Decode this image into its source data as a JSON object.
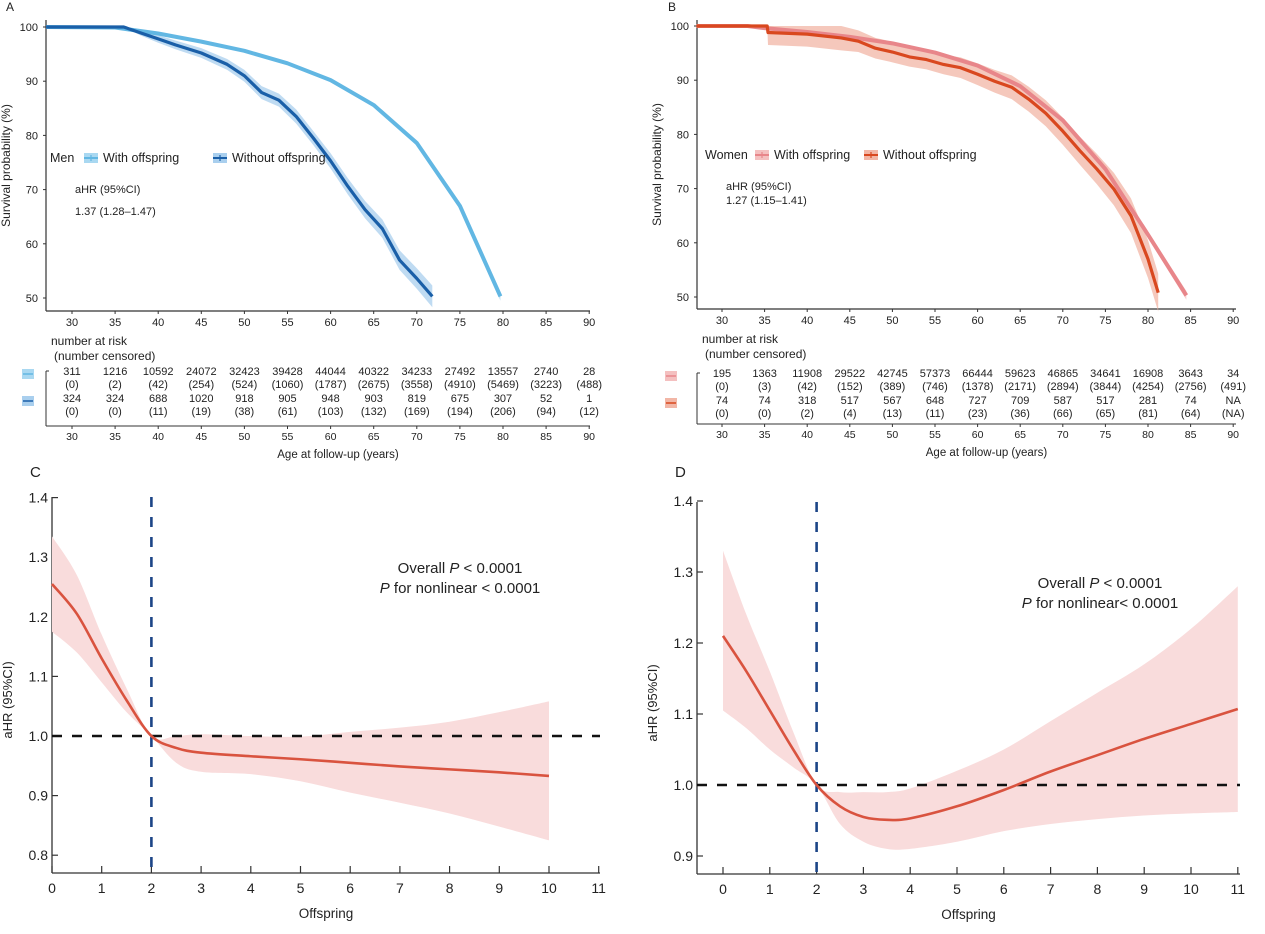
{
  "chart_data": [
    {
      "panel": "A",
      "type": "line",
      "subtype": "kaplan-meier",
      "ylabel": "Survival probability (%)",
      "xlabel": "Age at follow-up (years)",
      "xlim": [
        27,
        91
      ],
      "ylim": [
        48,
        100
      ],
      "xticks": [
        30,
        35,
        40,
        45,
        50,
        55,
        60,
        65,
        70,
        75,
        80,
        85,
        90
      ],
      "yticks": [
        50,
        60,
        70,
        80,
        90,
        100
      ],
      "legend": {
        "title": "Men",
        "placement": "center-left",
        "entries": [
          "With offspring",
          "Without offspring"
        ]
      },
      "annotation": {
        "line1": "aHR (95%CI)",
        "line2": "1.37 (1.28–1.47)"
      },
      "series": [
        {
          "name": "With offspring",
          "color": "#62b7e3",
          "band_color": "#a9d8f1",
          "x": [
            27,
            35,
            40,
            45,
            50,
            55,
            60,
            65,
            70,
            75,
            79.7
          ],
          "y": [
            100,
            99.9,
            98.8,
            97.3,
            95.6,
            93.3,
            90.2,
            85.6,
            78.6,
            67.0,
            50.3
          ],
          "ci_width": [
            0,
            0.1,
            0.2,
            0.2,
            0.3,
            0.3,
            0.35,
            0.4,
            0.5,
            0.6,
            0.8
          ]
        },
        {
          "name": "Without offspring",
          "color": "#1a5fa8",
          "band_color": "#a9cfee",
          "x": [
            27,
            36,
            38,
            40,
            42,
            45,
            48,
            50,
            52,
            54,
            56,
            58,
            60,
            62,
            64,
            66,
            68,
            70,
            71.8
          ],
          "y": [
            100,
            100,
            98.9,
            97.8,
            96.7,
            95.2,
            93.1,
            91.0,
            87.9,
            86.5,
            83.5,
            79.5,
            75.3,
            70.6,
            66.3,
            62.8,
            57.0,
            53.6,
            50.3
          ],
          "ci_width": [
            0,
            0,
            0.5,
            0.7,
            0.8,
            0.9,
            1.0,
            1.1,
            1.2,
            1.2,
            1.3,
            1.3,
            1.4,
            1.5,
            1.6,
            1.7,
            1.8,
            1.9,
            2.0
          ]
        }
      ],
      "risk_table": {
        "title_line1": "number at risk",
        "title_line2": "(number censored)",
        "rows": [
          {
            "name": "With offspring",
            "at_risk": [
              "311",
              "1216",
              "10592",
              "24072",
              "32423",
              "39428",
              "44044",
              "40322",
              "34233",
              "27492",
              "13557",
              "2740",
              "28"
            ],
            "censored": [
              "(0)",
              "(2)",
              "(42)",
              "(254)",
              "(524)",
              "(1060)",
              "(1787)",
              "(2675)",
              "(3558)",
              "(4910)",
              "(5469)",
              "(3223)",
              "(488)"
            ]
          },
          {
            "name": "Without offspring",
            "at_risk": [
              "324",
              "324",
              "688",
              "1020",
              "918",
              "905",
              "948",
              "903",
              "819",
              "675",
              "307",
              "52",
              "1"
            ],
            "censored": [
              "(0)",
              "(0)",
              "(11)",
              "(19)",
              "(38)",
              "(61)",
              "(103)",
              "(132)",
              "(169)",
              "(194)",
              "(206)",
              "(94)",
              "(12)"
            ]
          }
        ]
      }
    },
    {
      "panel": "B",
      "type": "line",
      "subtype": "kaplan-meier",
      "ylabel": "Survival probability (%)",
      "xlabel": "Age at follow-up (years)",
      "xlim": [
        27,
        91
      ],
      "ylim": [
        48,
        100
      ],
      "xticks": [
        30,
        35,
        40,
        45,
        50,
        55,
        60,
        65,
        70,
        75,
        80,
        85,
        90
      ],
      "yticks": [
        50,
        60,
        70,
        80,
        90,
        100
      ],
      "legend": {
        "title": "Women",
        "placement": "center-left",
        "entries": [
          "With offspring",
          "Without offspring"
        ]
      },
      "annotation": {
        "line1": "aHR (95%CI)",
        "line2": "1.27 (1.15–1.41)"
      },
      "series": [
        {
          "name": "With offspring",
          "color": "#e8868a",
          "band_color": "#f4c0c0",
          "x": [
            27,
            33,
            35,
            40,
            45,
            50,
            55,
            60,
            65,
            70,
            75,
            80,
            84.5
          ],
          "y": [
            100,
            100,
            99.6,
            98.9,
            98.0,
            96.8,
            95.1,
            92.7,
            88.9,
            82.6,
            73.6,
            61.5,
            50.3
          ],
          "ci_width": [
            0,
            0,
            0.2,
            0.2,
            0.2,
            0.25,
            0.3,
            0.3,
            0.35,
            0.4,
            0.5,
            0.6,
            0.8
          ]
        },
        {
          "name": "Without offspring",
          "color": "#d9481f",
          "band_color": "#f2b6a6",
          "x": [
            27,
            35.3,
            35.4,
            40,
            44,
            46,
            48,
            50,
            52,
            54,
            56,
            58,
            60,
            62,
            64,
            66,
            68,
            70,
            72,
            74,
            76,
            78,
            80,
            81.2
          ],
          "y": [
            100,
            100,
            98.8,
            98.5,
            97.8,
            97.2,
            95.9,
            95.2,
            94.3,
            93.8,
            92.9,
            92.3,
            91.1,
            89.8,
            88.7,
            86.5,
            83.9,
            80.6,
            77.0,
            73.6,
            69.9,
            65.0,
            57.0,
            50.8
          ],
          "ci_width": [
            0,
            0,
            2.3,
            2.3,
            2.3,
            2.0,
            1.9,
            1.9,
            1.8,
            1.8,
            1.8,
            1.9,
            2.0,
            2.1,
            2.2,
            2.3,
            2.4,
            2.5,
            2.6,
            2.8,
            3.0,
            3.2,
            3.5,
            3.5
          ]
        }
      ],
      "risk_table": {
        "title_line1": "number at risk",
        "title_line2": "(number censored)",
        "rows": [
          {
            "name": "With offspring",
            "at_risk": [
              "195",
              "1363",
              "11908",
              "29522",
              "42745",
              "57373",
              "66444",
              "59623",
              "46865",
              "34641",
              "16908",
              "3643",
              "34"
            ],
            "censored": [
              "(0)",
              "(3)",
              "(42)",
              "(152)",
              "(389)",
              "(746)",
              "(1378)",
              "(2171)",
              "(2894)",
              "(3844)",
              "(4254)",
              "(2756)",
              "(491)"
            ]
          },
          {
            "name": "Without offspring",
            "at_risk": [
              "74",
              "74",
              "318",
              "517",
              "567",
              "648",
              "727",
              "709",
              "587",
              "517",
              "281",
              "74",
              "NA"
            ],
            "censored": [
              "(0)",
              "(0)",
              "(2)",
              "(4)",
              "(13)",
              "(11)",
              "(23)",
              "(36)",
              "(66)",
              "(65)",
              "(81)",
              "(64)",
              "(NA)"
            ]
          }
        ]
      }
    },
    {
      "panel": "C",
      "type": "line",
      "subtype": "restricted-cubic-spline",
      "ylabel": "aHR (95%CI)",
      "xlabel": "Offspring",
      "xlim": [
        0,
        11
      ],
      "ylim": [
        0.77,
        1.4
      ],
      "xticks": [
        0,
        1,
        2,
        3,
        4,
        5,
        6,
        7,
        8,
        9,
        10,
        11
      ],
      "yticks": [
        "0.8",
        "0.9",
        "1.0",
        "1.1",
        "1.2",
        "1.3",
        "1.4"
      ],
      "reference_line_y": 1.0,
      "reference_line_x": 2,
      "annotation": {
        "line1_prefix": "Overall ",
        "line1_p": "P",
        "line1_suffix": " < 0.0001",
        "line2_p": "P",
        "line2_suffix": " for nonlinear < 0.0001"
      },
      "line_color": "#d9533f",
      "band_color": "#f9dcdc",
      "x": [
        0,
        0.5,
        1,
        1.5,
        2,
        2.5,
        3,
        4,
        5,
        6,
        7,
        8,
        9,
        10
      ],
      "y": [
        1.255,
        1.205,
        1.13,
        1.06,
        1.0,
        0.98,
        0.972,
        0.966,
        0.961,
        0.955,
        0.949,
        0.944,
        0.939,
        0.933
      ],
      "lower": [
        1.175,
        1.14,
        1.09,
        1.04,
        1.0,
        0.955,
        0.94,
        0.936,
        0.924,
        0.905,
        0.888,
        0.87,
        0.848,
        0.825
      ],
      "upper": [
        1.335,
        1.27,
        1.17,
        1.08,
        1.0,
        1.0,
        1.003,
        1.0,
        0.999,
        1.007,
        1.014,
        1.024,
        1.04,
        1.058
      ]
    },
    {
      "panel": "D",
      "type": "line",
      "subtype": "restricted-cubic-spline",
      "ylabel": "aHR (95%CI)",
      "xlabel": "Offspring",
      "xlim": [
        -0.5,
        11
      ],
      "ylim": [
        0.875,
        1.4
      ],
      "xticks": [
        0,
        1,
        2,
        3,
        4,
        5,
        6,
        7,
        8,
        9,
        10,
        11
      ],
      "yticks": [
        "0.9",
        "1.0",
        "1.1",
        "1.2",
        "1.3",
        "1.4"
      ],
      "reference_line_y": 1.0,
      "reference_line_x": 2,
      "annotation": {
        "line1_prefix": "Overall ",
        "line1_p": "P",
        "line1_suffix": " < 0.0001",
        "line2_p": "P",
        "line2_suffix": " for nonlinear< 0.0001"
      },
      "line_color": "#d9533f",
      "band_color": "#f9dcdc",
      "x": [
        0,
        0.5,
        1,
        1.5,
        2,
        2.5,
        3,
        3.5,
        4,
        5,
        6,
        7,
        8,
        9,
        10,
        11
      ],
      "y": [
        1.21,
        1.16,
        1.105,
        1.05,
        1.0,
        0.97,
        0.955,
        0.951,
        0.953,
        0.97,
        0.993,
        1.019,
        1.042,
        1.065,
        1.086,
        1.107
      ],
      "lower": [
        1.105,
        1.08,
        1.05,
        1.025,
        1.0,
        0.945,
        0.92,
        0.91,
        0.91,
        0.92,
        0.935,
        0.945,
        0.952,
        0.957,
        0.96,
        0.962
      ],
      "upper": [
        1.33,
        1.24,
        1.16,
        1.075,
        1.0,
        0.99,
        0.99,
        0.99,
        0.995,
        1.02,
        1.05,
        1.09,
        1.13,
        1.17,
        1.22,
        1.28
      ]
    }
  ],
  "panels": {
    "A": {
      "label": "A"
    },
    "B": {
      "label": "B"
    },
    "C": {
      "label": "C"
    },
    "D": {
      "label": "D"
    }
  }
}
